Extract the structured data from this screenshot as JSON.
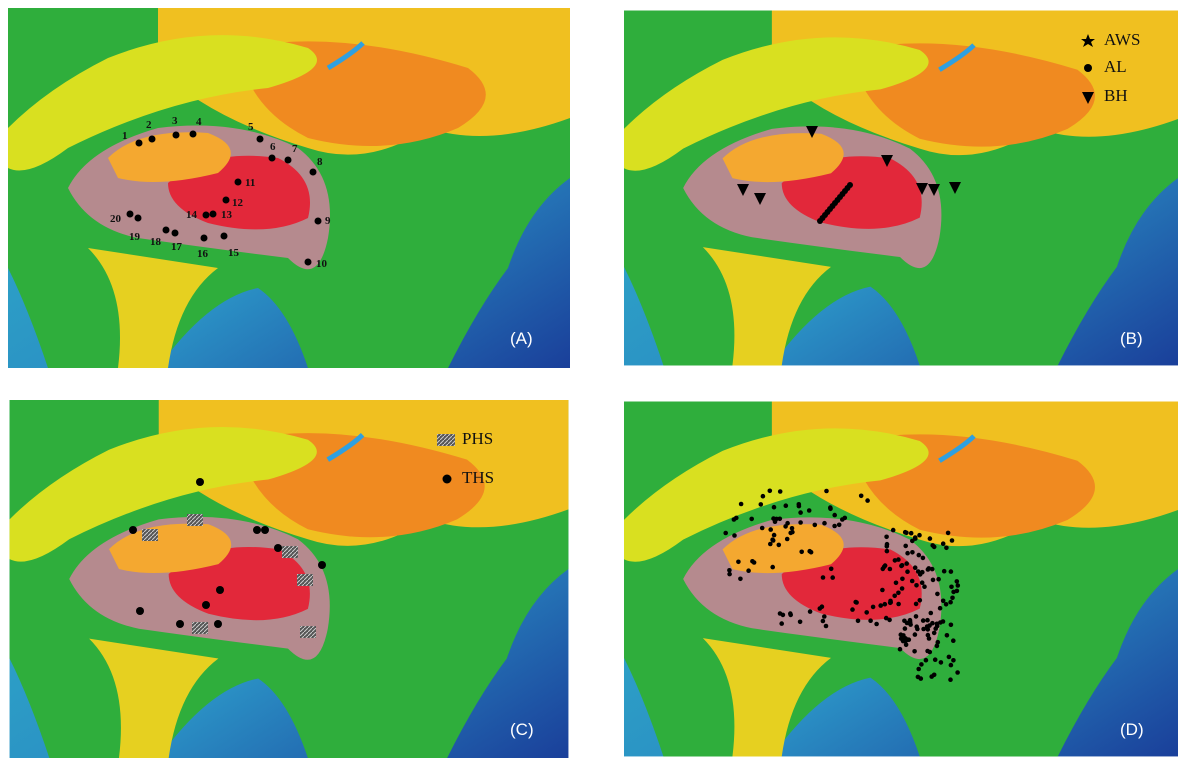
{
  "panels": [
    {
      "label": "(A)",
      "station_labels": [
        "1",
        "2",
        "3",
        "4",
        "5",
        "6",
        "7",
        "8",
        "9",
        "10",
        "11",
        "12",
        "13",
        "14",
        "15",
        "16",
        "17",
        "18",
        "19",
        "20"
      ]
    },
    {
      "label": "(B)",
      "legend": [
        "AWS",
        "AL",
        "BH"
      ]
    },
    {
      "label": "(C)",
      "legend": [
        "PHS",
        "THS"
      ]
    },
    {
      "label": "(D)"
    }
  ]
}
